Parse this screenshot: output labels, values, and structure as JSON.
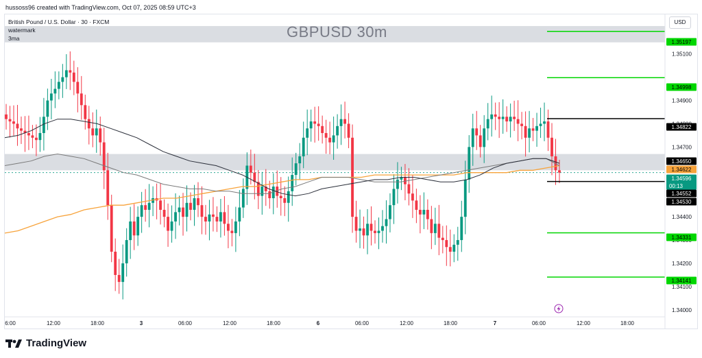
{
  "attribution": "hussoss96 created with TradingView.com, Oct 07, 2025 08:59 UTC+3",
  "legend": {
    "symbol_line": "British Pound / U.S. Dollar · 30 · FXCM",
    "line2": "watermark",
    "line3": "3ma"
  },
  "watermark": "GBPUSD 30m",
  "currency": "USD",
  "logo_text": "TradingView",
  "colors": {
    "up": "#089981",
    "down": "#f23645",
    "ma_orange": "#f7a33b",
    "ma_dark": "#2a2e39",
    "ma_gray": "#7a7a7a",
    "level_green": "#00d600",
    "level_black": "#000000",
    "zone": "#d6d9df"
  },
  "chart_data": {
    "type": "candlestick",
    "title": "GBPUSD 30m",
    "ylim": [
      1.3397,
      1.3527
    ],
    "y_ticks": [
      "1.35100",
      "1.34900",
      "1.34800",
      "1.34700",
      "1.34400",
      "1.34300",
      "1.34200",
      "1.34100",
      "1.34000"
    ],
    "x_ticks": [
      "6:00",
      "12:00",
      "18:00",
      "3",
      "06:00",
      "12:00",
      "18:00",
      "6",
      "06:00",
      "12:00",
      "18:00",
      "7",
      "06:00",
      "12:00",
      "18:00"
    ],
    "price_labels": [
      {
        "text": "1.35197",
        "value": 1.35197,
        "style": "green"
      },
      {
        "text": "1.34998",
        "value": 1.34998,
        "style": "green"
      },
      {
        "text": "1.34822",
        "value": 1.34822,
        "style": "black"
      },
      {
        "text": "1.34650",
        "value": 1.3465,
        "style": "black"
      },
      {
        "text": "1.34622",
        "value": 1.34622,
        "style": "orange"
      },
      {
        "text": "1.34596",
        "value": 1.34596,
        "style": "teal",
        "sub": "00:13"
      },
      {
        "text": "1.34552",
        "value": 1.34552,
        "style": "black"
      },
      {
        "text": "1.34530",
        "value": 1.3453,
        "style": "black"
      },
      {
        "text": "1.34331",
        "value": 1.34331,
        "style": "green"
      },
      {
        "text": "1.34141",
        "value": 1.34141,
        "style": "green"
      }
    ],
    "levels": [
      {
        "value": 1.35197,
        "color": "green"
      },
      {
        "value": 1.34998,
        "color": "green"
      },
      {
        "value": 1.34822,
        "color": "black"
      },
      {
        "value": 1.34552,
        "color": "black"
      },
      {
        "value": 1.34331,
        "color": "green"
      },
      {
        "value": 1.34141,
        "color": "green"
      }
    ],
    "zones": [
      {
        "from": 1.3515,
        "to": 1.3522
      },
      {
        "from": 1.346,
        "to": 1.3467
      }
    ],
    "candles_close": [
      1.3482,
      1.3481,
      1.348,
      1.3478,
      1.3477,
      1.3476,
      1.3475,
      1.3474,
      1.3473,
      1.3476,
      1.3483,
      1.349,
      1.3493,
      1.3495,
      1.3498,
      1.35,
      1.3503,
      1.3502,
      1.3498,
      1.3493,
      1.3488,
      1.3482,
      1.3478,
      1.3475,
      1.3478,
      1.3472,
      1.346,
      1.3445,
      1.3425,
      1.3415,
      1.3412,
      1.342,
      1.343,
      1.3438,
      1.3432,
      1.344,
      1.3445,
      1.3443,
      1.3446,
      1.3448,
      1.3447,
      1.3443,
      1.344,
      1.3434,
      1.3438,
      1.3442,
      1.3444,
      1.344,
      1.3446,
      1.3443,
      1.3448,
      1.3445,
      1.344,
      1.3438,
      1.3441,
      1.344,
      1.3438,
      1.3442,
      1.3437,
      1.3434,
      1.3433,
      1.3438,
      1.3444,
      1.3452,
      1.3462,
      1.3459,
      1.3455,
      1.3449,
      1.3453,
      1.3451,
      1.3448,
      1.3453,
      1.3449,
      1.3448,
      1.3446,
      1.3451,
      1.3458,
      1.3463,
      1.3466,
      1.3474,
      1.3478,
      1.3481,
      1.348,
      1.3479,
      1.3476,
      1.3474,
      1.3472,
      1.3475,
      1.3479,
      1.3482,
      1.348,
      1.3474,
      1.344,
      1.3434,
      1.3435,
      1.3432,
      1.3437,
      1.3434,
      1.3433,
      1.3434,
      1.3436,
      1.3439,
      1.3445,
      1.3452,
      1.3456,
      1.3457,
      1.3454,
      1.345,
      1.3447,
      1.3443,
      1.3441,
      1.3443,
      1.3439,
      1.3433,
      1.3437,
      1.3431,
      1.343,
      1.3427,
      1.3425,
      1.3428,
      1.343,
      1.344,
      1.3456,
      1.347,
      1.3478,
      1.3475,
      1.347,
      1.3478,
      1.3482,
      1.3484,
      1.3483,
      1.3482,
      1.3483,
      1.3481,
      1.3483,
      1.3482,
      1.348,
      1.3479,
      1.3474,
      1.3478,
      1.3477,
      1.3479,
      1.348,
      1.3481,
      1.3474,
      1.3466,
      1.346,
      1.3459
    ],
    "ma_orange": [
      1.3433,
      1.3434,
      1.3436,
      1.3438,
      1.344,
      1.3441,
      1.3443,
      1.3444,
      1.3445,
      1.3445,
      1.3446,
      1.3447,
      1.3448,
      1.3448,
      1.3449,
      1.345,
      1.3451,
      1.3452,
      1.3453,
      1.3453,
      1.3454,
      1.3455,
      1.3456,
      1.3456,
      1.3457,
      1.3457,
      1.3457,
      1.3457,
      1.3458,
      1.3458,
      1.3458,
      1.3458,
      1.3458,
      1.3458,
      1.3458,
      1.3459,
      1.3459,
      1.3459,
      1.3459,
      1.346,
      1.346,
      1.3461,
      1.3462
    ],
    "ma_dark": [
      1.3474,
      1.3475,
      1.3477,
      1.348,
      1.3482,
      1.3482,
      1.3481,
      1.348,
      1.3478,
      1.3476,
      1.3474,
      1.3471,
      1.3468,
      1.3466,
      1.3464,
      1.3463,
      1.3462,
      1.346,
      1.3458,
      1.3455,
      1.3452,
      1.345,
      1.3449,
      1.345,
      1.3452,
      1.3453,
      1.3454,
      1.3455,
      1.3456,
      1.3456,
      1.3457,
      1.3457,
      1.3456,
      1.3455,
      1.3455,
      1.3456,
      1.3458,
      1.3461,
      1.3463,
      1.3464,
      1.3465,
      1.3465,
      1.3463
    ],
    "ma_gray": [
      1.3462,
      1.3463,
      1.3464,
      1.3466,
      1.3467,
      1.3466,
      1.3465,
      1.3463,
      1.3461,
      1.3459,
      1.3458,
      1.3456,
      1.3454,
      1.3453,
      1.3452,
      1.3452,
      1.3451,
      1.3451,
      1.345,
      1.345,
      1.345,
      1.3452,
      1.3453,
      1.3455,
      1.3457,
      1.3457,
      1.3457,
      1.3456,
      1.3455,
      1.3455,
      1.3455,
      1.3456,
      1.3457,
      1.3458,
      1.3459,
      1.346,
      1.3461,
      1.3462,
      1.3463,
      1.3464,
      1.3465,
      1.3465,
      1.3462
    ]
  }
}
